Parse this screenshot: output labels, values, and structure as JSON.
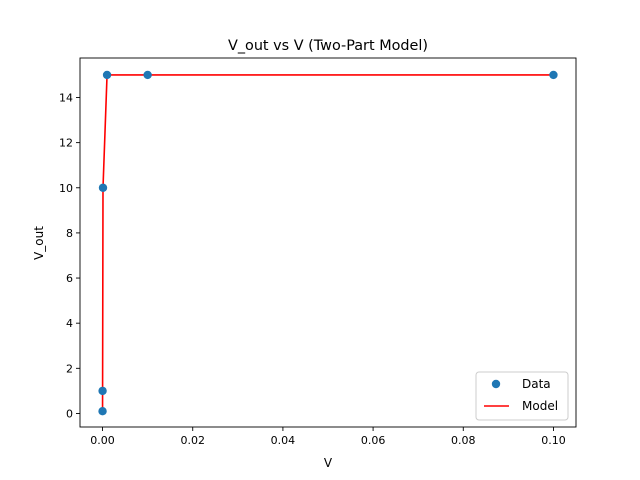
{
  "chart_data": {
    "type": "scatter",
    "title": "V_out vs V (Two-Part Model)",
    "xlabel": "V",
    "ylabel": "V_out",
    "xlim": [
      -0.005,
      0.105
    ],
    "ylim": [
      -0.6,
      15.75
    ],
    "xticks": [
      0.0,
      0.02,
      0.04,
      0.06,
      0.08,
      0.1
    ],
    "xtick_labels": [
      "0.00",
      "0.02",
      "0.04",
      "0.06",
      "0.08",
      "0.10"
    ],
    "yticks": [
      0,
      2,
      4,
      6,
      8,
      10,
      12,
      14
    ],
    "ytick_labels": [
      "0",
      "2",
      "4",
      "6",
      "8",
      "10",
      "12",
      "14"
    ],
    "grid": false,
    "legend": {
      "placement": "lower-right",
      "entries": [
        {
          "label": "Data",
          "kind": "marker",
          "color": "#1f77b4"
        },
        {
          "label": "Model",
          "kind": "line",
          "color": "#ff0000"
        }
      ]
    },
    "series": [
      {
        "name": "Data",
        "kind": "scatter",
        "color": "#1f77b4",
        "points": [
          {
            "x": 1e-06,
            "y": 0.1
          },
          {
            "x": 1e-05,
            "y": 1.0
          },
          {
            "x": 0.0001,
            "y": 10.0
          },
          {
            "x": 0.001,
            "y": 15.0
          },
          {
            "x": 0.01,
            "y": 15.0
          },
          {
            "x": 0.1,
            "y": 15.0
          }
        ]
      },
      {
        "name": "Model",
        "kind": "line",
        "color": "#ff0000",
        "points": [
          {
            "x": 1e-06,
            "y": 0.1
          },
          {
            "x": 1e-05,
            "y": 1.0
          },
          {
            "x": 0.0001,
            "y": 10.0
          },
          {
            "x": 0.001,
            "y": 15.0
          },
          {
            "x": 0.01,
            "y": 15.0
          },
          {
            "x": 0.1,
            "y": 15.0
          }
        ]
      }
    ]
  }
}
